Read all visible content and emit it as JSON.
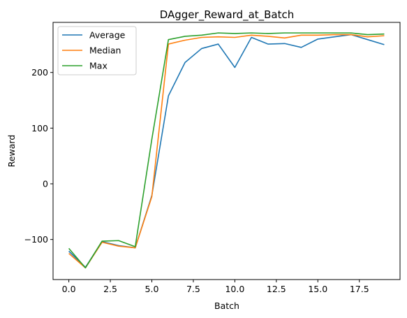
{
  "chart_data": {
    "type": "line",
    "title": "DAgger_Reward_at_Batch",
    "xlabel": "Batch",
    "ylabel": "Reward",
    "xlim": [
      -0.95,
      19.95
    ],
    "ylim": [
      -172,
      290
    ],
    "xticks": [
      0,
      2.5,
      5,
      7.5,
      10,
      12.5,
      15,
      17.5
    ],
    "xtick_labels": [
      "0.0",
      "2.5",
      "5.0",
      "7.5",
      "10.0",
      "12.5",
      "15.0",
      "17.5"
    ],
    "yticks": [
      -100,
      0,
      100,
      200
    ],
    "ytick_labels": [
      "−100",
      "0",
      "100",
      "200"
    ],
    "grid": false,
    "legend_position": "upper left",
    "x": [
      0,
      1,
      2,
      3,
      4,
      5,
      6,
      7,
      8,
      9,
      10,
      11,
      12,
      13,
      14,
      15,
      16,
      17,
      18,
      19
    ],
    "series": [
      {
        "name": "Average",
        "color": "#1f77b4",
        "values": [
          -121,
          -150,
          -104,
          -111,
          -115,
          -21,
          158,
          218,
          243,
          251,
          209,
          263,
          251,
          252,
          245,
          260,
          264,
          268,
          259,
          250
        ]
      },
      {
        "name": "Median",
        "color": "#ff7f0e",
        "values": [
          -125,
          -151,
          -105,
          -112,
          -115,
          -23,
          251,
          258,
          263,
          264,
          263,
          267,
          265,
          262,
          267,
          267,
          268,
          268,
          264,
          266
        ]
      },
      {
        "name": "Max",
        "color": "#2ca02c",
        "values": [
          -116,
          -151,
          -103,
          -102,
          -113,
          80,
          259,
          265,
          267,
          271,
          270,
          271,
          270,
          271,
          271,
          271,
          271,
          271,
          268,
          269
        ]
      }
    ]
  }
}
